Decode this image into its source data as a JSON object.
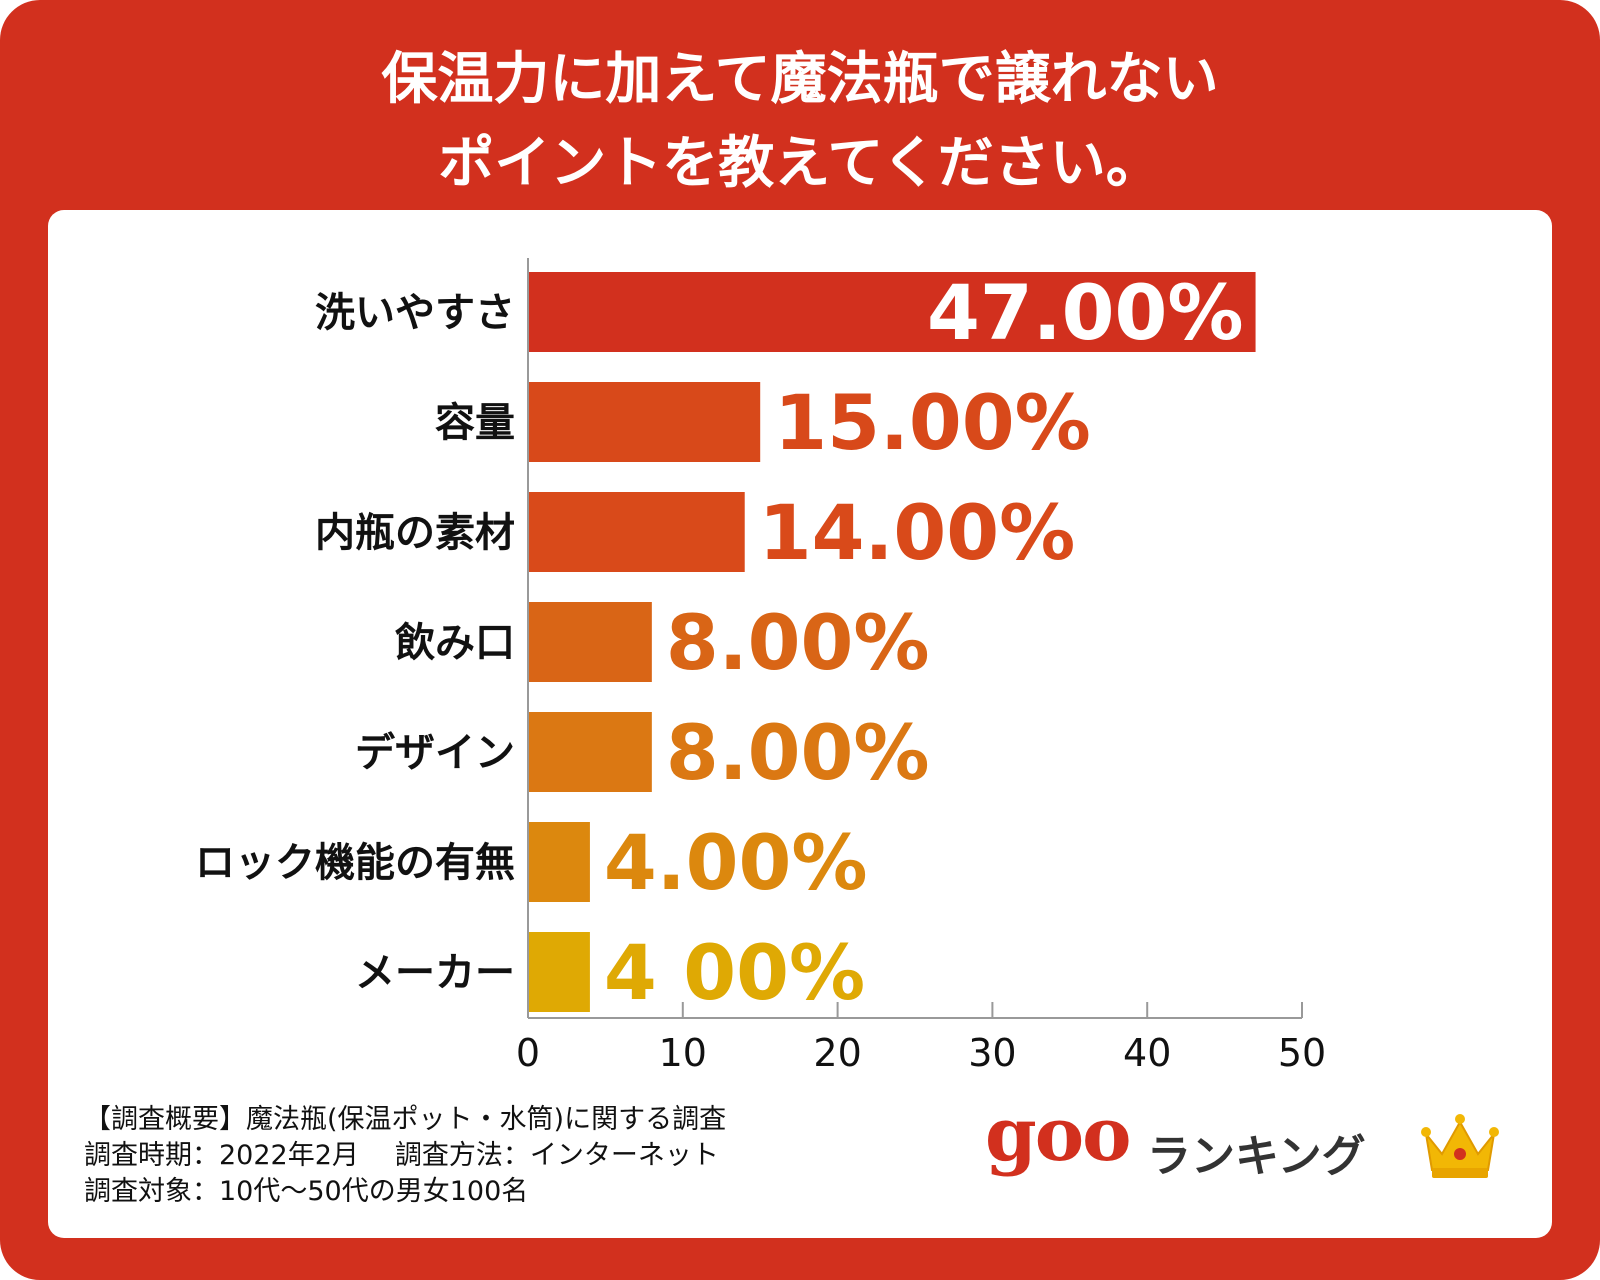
{
  "title": {
    "line1": "保温力に加えて魔法瓶で譲れない",
    "line2": "ポイントを教えてください。"
  },
  "chart_data": {
    "type": "bar",
    "orientation": "horizontal",
    "categories": [
      "洗いやすさ",
      "容量",
      "内瓶の素材",
      "飲み口",
      "デザイン",
      "ロック機能の有無",
      "メーカー"
    ],
    "values": [
      47,
      15,
      14,
      8,
      8,
      4,
      4
    ],
    "value_labels": [
      "47.00%",
      "15.00%",
      "14.00%",
      "8.00%",
      "8.00%",
      "4.00%",
      "4 00%"
    ],
    "bar_colors": [
      "#d2301e",
      "#d8491a",
      "#d94a1a",
      "#d96516",
      "#db7813",
      "#dc880e",
      "#dfa904"
    ],
    "x_ticks": [
      0,
      10,
      20,
      30,
      40,
      50
    ],
    "xlim": [
      0,
      50
    ],
    "grid": false,
    "title": "保温力に加えて魔法瓶で譲れないポイントを教えてください。"
  },
  "footnote": {
    "line1": "【調査概要】魔法瓶(保温ポット・水筒)に関する調査",
    "period": "調査時期：2022年2月",
    "method": "調査方法：インターネット",
    "line3": "調査対象：10代～50代の男女100名"
  },
  "brand": {
    "logo": "goo",
    "label": "ランキング",
    "icon": "crown-icon",
    "accent": "#d2301e",
    "crown_color": "#f2b705"
  }
}
